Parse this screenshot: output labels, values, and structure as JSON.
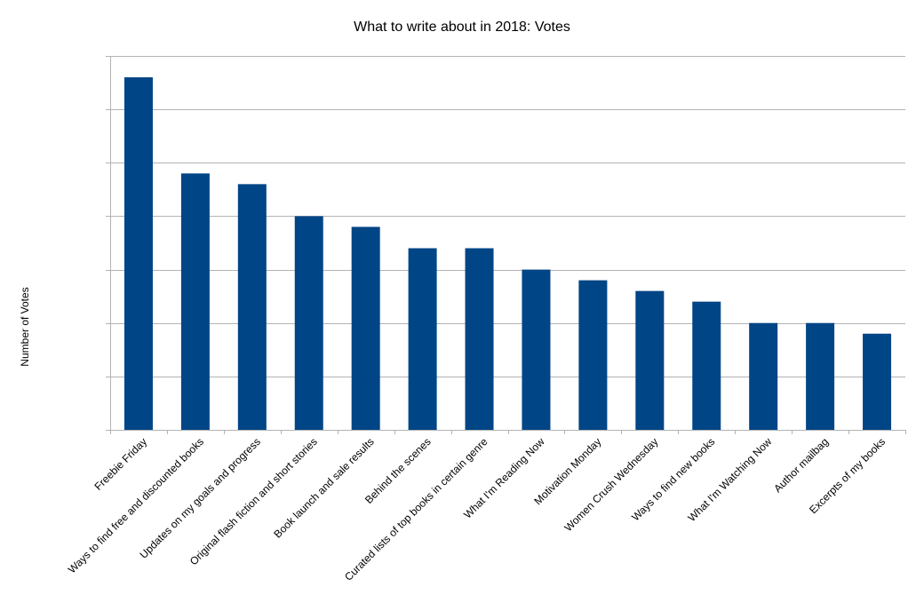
{
  "chart_data": {
    "type": "bar",
    "title": "What to write about in 2018: Votes",
    "xlabel": "",
    "ylabel": "Number of Votes",
    "categories": [
      "Freebie Friday",
      "Ways to find free and discounted books",
      "Updates on my goals and progress",
      "Original flash fiction and short stories",
      "Book launch and sale results",
      "Behind the scenes",
      "Curated lists of top books in certain genre",
      "What I'm Reading Now",
      "Motivation Monday",
      "Women Crush Wednesday",
      "Ways to find new books",
      "What I'm Watching Now",
      "Author mailbag",
      "Excerpts of my books"
    ],
    "values": [
      33,
      24,
      23,
      20,
      19,
      17,
      17,
      15,
      14,
      13,
      12,
      10,
      10,
      9
    ],
    "ylim": [
      0,
      35
    ],
    "grid": true,
    "y_tick_labels_shown": false,
    "bar_color": "#004586",
    "legend": "none"
  }
}
